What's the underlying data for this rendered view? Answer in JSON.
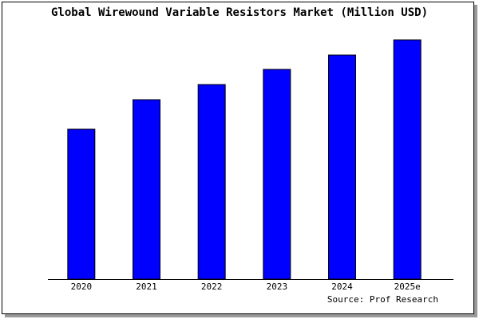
{
  "chart_data": {
    "type": "bar",
    "title": "Global Wirewound Variable Resistors Market (Million USD)",
    "categories": [
      "2020",
      "2021",
      "2022",
      "2023",
      "2024",
      "2025e"
    ],
    "values": [
      188,
      225,
      244,
      263,
      281,
      300
    ],
    "color": "#0000ff",
    "source": "Source: Prof Research"
  }
}
